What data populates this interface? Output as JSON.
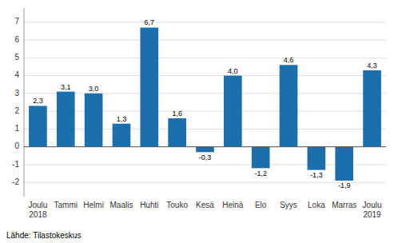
{
  "chart_data": {
    "type": "bar",
    "categories": [
      "Joulu\n2018",
      "Tammi",
      "Helmi",
      "Maalis",
      "Huhti",
      "Touko",
      "Kesä",
      "Heinä",
      "Elo",
      "Syys",
      "Loka",
      "Marras",
      "Joulu\n2019"
    ],
    "values": [
      2.3,
      3.1,
      3.0,
      1.3,
      6.7,
      1.6,
      -0.3,
      4.0,
      -1.2,
      4.6,
      -1.3,
      -1.9,
      4.3
    ],
    "value_labels": [
      "2,3",
      "3,1",
      "3,0",
      "1,3",
      "6,7",
      "1,6",
      "-0,3",
      "4,0",
      "-1,2",
      "4,6",
      "-1,3",
      "-1,9",
      "4,3"
    ],
    "color": "#1c6fad",
    "ylim": [
      -2.8,
      7.8
    ],
    "yticks": [
      -2,
      -1,
      0,
      1,
      2,
      3,
      4,
      5,
      6,
      7
    ],
    "grid": true,
    "data_labels": true,
    "annotations": [
      "Lähde: Tilastokeskus"
    ]
  }
}
